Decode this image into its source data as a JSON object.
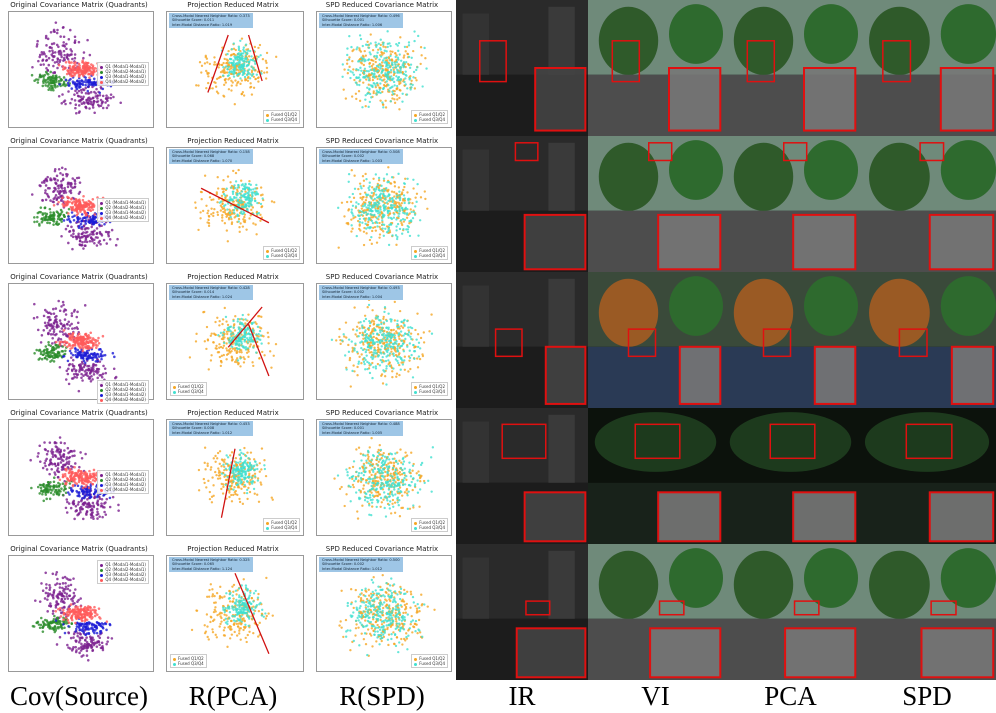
{
  "panel_titles": {
    "cov": "Original Covariance Matrix (Quadrants)",
    "pca": "Projection Reduced Matrix",
    "spd": "SPD Reduced Covariance Matrix"
  },
  "cov_legend": [
    "Q1 (Modal1-Modal1)",
    "Q2 (Modal2-Modal1)",
    "Q3 (Modal1-Modal2)",
    "Q4 (Modal2-Modal2)"
  ],
  "fused_legend": [
    "Fused Q1/Q2",
    "Fused Q3/Q4"
  ],
  "stat_names": [
    "Cross-Modal Nearest Neighbor Ratio:",
    "Silhouette Score:",
    "Inter-Modal Distance Ratio:"
  ],
  "rows": [
    {
      "pca_stats": [
        "0.373",
        "0.011",
        "1.019"
      ],
      "spd_stats": [
        "0.496",
        "0.001",
        "1.006"
      ]
    },
    {
      "pca_stats": [
        "0.158",
        "0.068",
        "1.070"
      ],
      "spd_stats": [
        "0.508",
        "0.002",
        "1.003"
      ]
    },
    {
      "pca_stats": [
        "0.428",
        "0.014",
        "1.024"
      ],
      "spd_stats": [
        "0.493",
        "0.002",
        "1.004"
      ]
    },
    {
      "pca_stats": [
        "0.453",
        "0.008",
        "1.012"
      ],
      "spd_stats": [
        "0.488",
        "0.001",
        "1.005"
      ]
    },
    {
      "pca_stats": [
        "0.325",
        "0.065",
        "1.124"
      ],
      "spd_stats": [
        "0.500",
        "0.002",
        "1.012"
      ]
    }
  ],
  "column_labels": [
    "Cov(Source)",
    "R(PCA)",
    "R(SPD)",
    "IR",
    "VI",
    "PCA",
    "SPD"
  ],
  "colors": {
    "q1": "#7a1f8f",
    "q2": "#2a8c2a",
    "q3": "#1c1cd6",
    "q4": "#ff5a5a",
    "fused_a": "#f5a623",
    "fused_b": "#40e0d0",
    "trend": "#d01010",
    "stat_box": "#9ec6e6",
    "highlight": "#e01010"
  }
}
